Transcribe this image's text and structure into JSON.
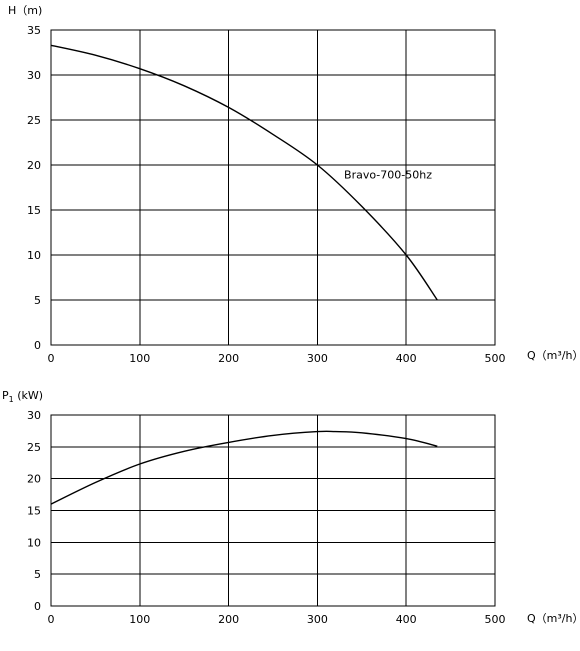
{
  "chart_data": [
    {
      "type": "line",
      "title": "",
      "ylabel": "H（m)",
      "xlabel": "Q（m³/h）",
      "xlim": [
        0,
        500
      ],
      "ylim": [
        0,
        35
      ],
      "xticks": [
        0,
        100,
        200,
        300,
        400,
        500
      ],
      "yticks": [
        0,
        5,
        10,
        15,
        20,
        25,
        30,
        35
      ],
      "grid": true,
      "series": [
        {
          "name": "Bravo-700-50hz",
          "x": [
            0,
            50,
            100,
            150,
            200,
            250,
            300,
            350,
            400,
            435
          ],
          "y": [
            33.3,
            32.2,
            30.7,
            28.8,
            26.4,
            23.4,
            20.0,
            15.4,
            10.0,
            5.0
          ]
        }
      ],
      "annotations": [
        {
          "text": "Bravo-700-50hz",
          "x": 330,
          "y": 18.5
        }
      ]
    },
    {
      "type": "line",
      "title": "",
      "ylabel": "P1 (kW)",
      "ylabel_main": "P",
      "ylabel_sub": "1",
      "ylabel_unit": " (kW)",
      "xlabel": "Q（m³/h）",
      "xlim": [
        0,
        500
      ],
      "ylim": [
        0,
        30
      ],
      "xticks": [
        0,
        100,
        200,
        300,
        400,
        500
      ],
      "yticks": [
        0,
        5,
        10,
        15,
        20,
        25,
        30
      ],
      "grid": true,
      "series": [
        {
          "name": "",
          "x": [
            0,
            50,
            100,
            150,
            200,
            250,
            300,
            320,
            350,
            400,
            435
          ],
          "y": [
            16.0,
            19.4,
            22.3,
            24.3,
            25.7,
            26.8,
            27.4,
            27.4,
            27.2,
            26.3,
            25.1
          ]
        }
      ]
    }
  ]
}
